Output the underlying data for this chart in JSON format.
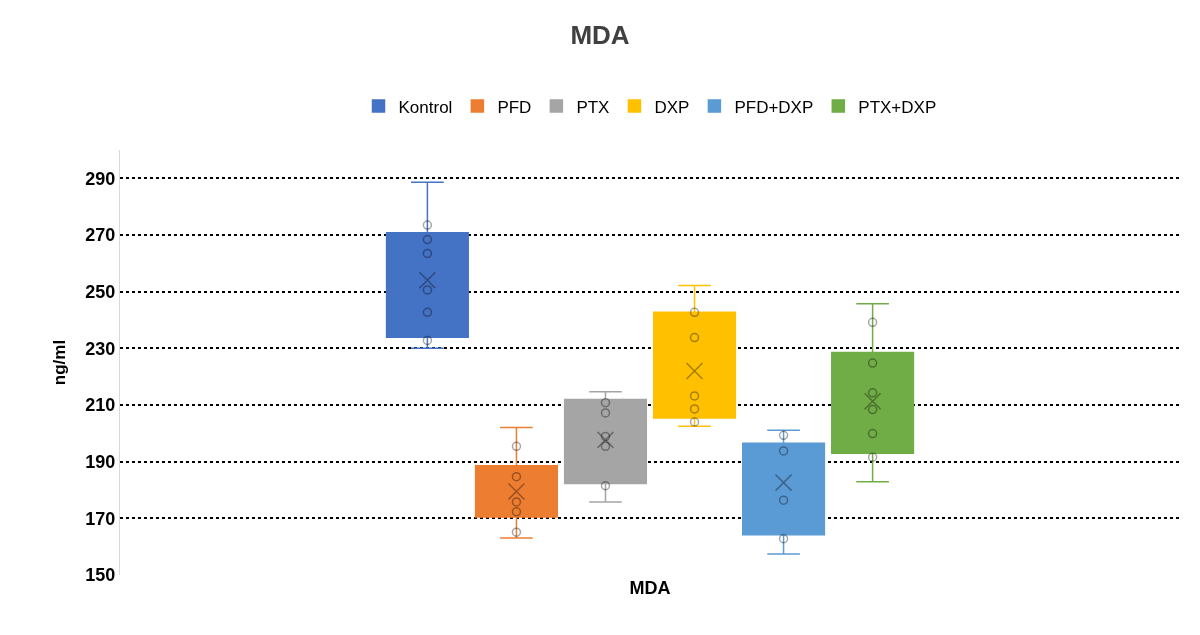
{
  "chart_data": {
    "type": "box",
    "title": "MDA",
    "ylabel": "ng/ml",
    "categories": [
      "MDA"
    ],
    "ylim": [
      150,
      300
    ],
    "yticks": [
      150,
      170,
      190,
      210,
      230,
      250,
      270,
      290
    ],
    "grid": "y",
    "legend": "top",
    "marker": "circle",
    "series": [
      {
        "name": "Kontrol",
        "color": "#4472c4",
        "boxes": [
          {
            "low": 230.0,
            "q1": 233.9,
            "median": 250.2,
            "q3": 270.8,
            "high": 288.6,
            "mean": 254.0,
            "outliers": [
              273.5,
              268.4,
              263.5,
              250.6,
              242.7,
              232.8
            ]
          }
        ]
      },
      {
        "name": "PFD",
        "color": "#ed7d31",
        "boxes": [
          {
            "low": 163.1,
            "q1": 170.5,
            "median": 175.8,
            "q3": 188.6,
            "high": 202.1,
            "mean": 179.5,
            "outliers": [
              195.4,
              184.7,
              175.8,
              172.3,
              165.1
            ]
          }
        ]
      },
      {
        "name": "PTX",
        "color": "#a5a5a5",
        "boxes": [
          {
            "low": 175.8,
            "q1": 182.3,
            "median": 199.3,
            "q3": 211.9,
            "high": 214.7,
            "mean": 197.7,
            "outliers": [
              210.8,
              207.2,
              198.9,
              195.4,
              181.5
            ]
          }
        ]
      },
      {
        "name": "DXP",
        "color": "#ffc000",
        "boxes": [
          {
            "low": 202.5,
            "q1": 205.4,
            "median": 214.3,
            "q3": 242.7,
            "high": 252.2,
            "mean": 222.0,
            "outliers": [
              242.7,
              233.8,
              213.2,
              208.6,
              204.0
            ]
          }
        ]
      },
      {
        "name": "PFD+DXP",
        "color": "#5b9bd5",
        "boxes": [
          {
            "low": 157.4,
            "q1": 164.2,
            "median": 186.1,
            "q3": 196.5,
            "high": 201.1,
            "mean": 182.6,
            "outliers": [
              199.3,
              193.8,
              176.4,
              162.8
            ]
          }
        ]
      },
      {
        "name": "PTX+DXP",
        "color": "#70ad47",
        "boxes": [
          {
            "low": 182.9,
            "q1": 193.0,
            "median": 211.6,
            "q3": 228.5,
            "high": 245.7,
            "mean": 211.3,
            "outliers": [
              239.2,
              224.8,
              214.3,
              208.4,
              199.9,
              191.6
            ]
          }
        ]
      }
    ]
  }
}
